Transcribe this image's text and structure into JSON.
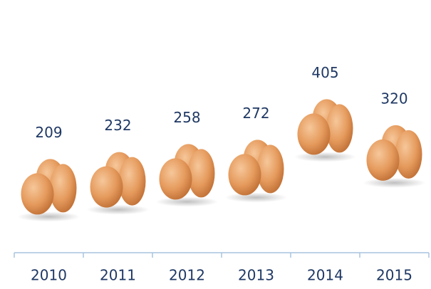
{
  "chart_data": {
    "type": "pictograph",
    "categories": [
      "2010",
      "2011",
      "2012",
      "2013",
      "2014",
      "2015"
    ],
    "values": [
      209,
      232,
      258,
      272,
      405,
      320
    ],
    "color": "#1f3864"
  }
}
